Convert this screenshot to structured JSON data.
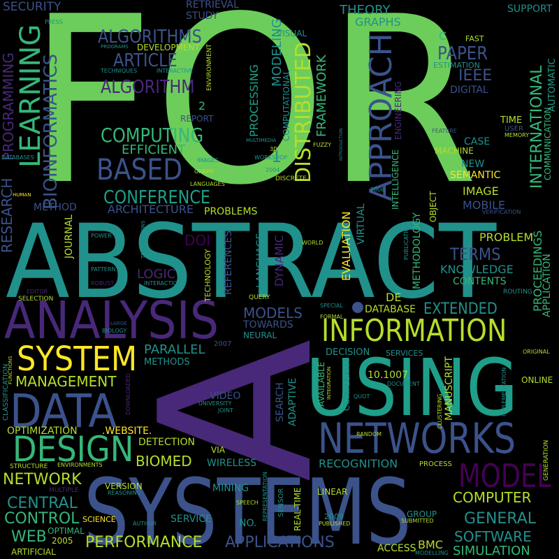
{
  "palette": {
    "background": "#000000",
    "green": "#6ccd5a",
    "teal": "#21918c",
    "blue": "#3b528b",
    "purple": "#482878",
    "dark_purple": "#440154",
    "yellow": "#fde725",
    "light_green": "#b5de2b",
    "sea": "#35b779",
    "mint": "#1f9e89"
  },
  "words": {
    "for": "FOR",
    "abstract": "ABSTRACT",
    "a": "A",
    "using": "USING",
    "systems": "SYSTEMS",
    "analysis": "ANALYSIS",
    "information": "INFORMATION",
    "data": "DATA",
    "networks": "NETWORKS",
    "design": "DESIGN",
    "system": "SYSTEM",
    "model": "MODEL",
    "approach": "APPROACH",
    "based": "BASED",
    "learning": "LEARNING",
    "distributed": "DISTRIBUTED",
    "computing": "COMPUTING",
    "conference": "CONFERENCE",
    "algorithms": "ALGORITHMS",
    "article": "ARTICLE",
    "algorithm": "ALGORITHM",
    "bioinformatics": "BIOINFORMATICS",
    "research": "RESEARCH",
    "programming": "PROGRAMMING",
    "security": "SECURITY",
    "retrieval": "RETRIEVAL",
    "study": "STUDY",
    "theory": "THEORY",
    "graphs": "GRAPHS",
    "support": "SUPPORT",
    "paper": "PAPER",
    "ieee": "IEEE",
    "digital": "DIGITAL",
    "international": "INTERNATIONAL",
    "communication": "COMMUNICATION",
    "automatic": "AUTOMATIC",
    "framework": "FRAMEWORK",
    "modeling": "MODELING",
    "processing": "PROCESSING",
    "computational": "COMPUTATIONAL",
    "efficient": "EFFICIENT",
    "architecture": "ARCHITECTURE",
    "method": "METHOD",
    "problems": "PROBLEMS",
    "image": "IMAGE",
    "mobile": "MOBILE",
    "new": "NEW",
    "semantic": "SEMANTIC",
    "case": "CASE",
    "machine": "MACHINE",
    "time": "TIME",
    "user": "USER",
    "memory": "MEMORY",
    "feature": "FEATURE",
    "intelligence": "INTELLIGENCE",
    "engineering": "ENGINEERING",
    "development": "DEVELOPMENT",
    "environment": "ENVIRONMENT",
    "interactive": "INTERACTIVE",
    "techniques": "TECHNIQUES",
    "programs": "PROGRAMS",
    "press": "PRESS",
    "visual": "VISUAL",
    "fast": "FAST",
    "estimation": "ESTIMATION",
    "c": "C",
    "report": "REPORT",
    "two": "2",
    "one": "1",
    "three_d": "3D",
    "workshop": "WORKSHOP",
    "multimedia": "MULTIMEDIA",
    "fuzzy": "FUZZY",
    "introduction": "INTRODUCTION",
    "discrete": "DISCRETE",
    "y2004": "2004",
    "y2006": "2006",
    "graph": "GRAPH",
    "languages": "LANGUAGES",
    "images": "IMAGES",
    "databases": "DATABASES",
    "human": "HUMAN",
    "problem": "PROBLEM",
    "terms": "TERMS",
    "knowledge": "KNOWLEDGE",
    "contents": "CONTENTS",
    "routing": "ROUTING",
    "proceedings": "PROCEEDINGS",
    "application": "APPLICATION",
    "verification": "VERIFICATION",
    "object": "OBJECT",
    "publication": "PUBLICATION",
    "methodology": "METHODOLOGY",
    "evaluation": "EVALUATION",
    "virtual": "VIRTUAL",
    "extended": "EXTENDED",
    "database": "DATABASE",
    "de": "DE",
    "journal": "JOURNAL",
    "power": "POWER",
    "doi": "DOI",
    "references": "REFERENCES",
    "language": "LANGUAGE",
    "dynamic": "DYNAMIC",
    "world": "WORLD",
    "logic": "LOGIC",
    "technology": "TECHNOLOGY",
    "computation": "COMPUTATION",
    "transactions": "TRANSACTIONS",
    "pattern": "PATTERN",
    "robust": "ROBUST",
    "interaction": "INTERACTION",
    "editor": "EDITOR",
    "selection": "SELECTION",
    "query": "QUERY",
    "models": "MODELS",
    "towards": "TOWARDS",
    "neural": "NEURAL",
    "special": "SPECIAL",
    "formal": "FORMAL",
    "biology": "BIOLOGY",
    "large": "LARGE",
    "parallel": "PARALLEL",
    "methods": "METHODS",
    "y2007": "2007",
    "management": "MANAGEMENT",
    "classification": "CLASSIFICATION",
    "functions": "FUNCTIONS",
    "decision": "DECISION",
    "services": "SERVICES",
    "original": "ORIGINAL",
    "doi_number": "10.1007",
    "document": "DOCUMENT",
    "online": "ONLINE",
    "manuscript": "MANUSCRIPT",
    "complexity": "COMPLEXITY",
    "available": "AVAILABLE",
    "integration": "INTEGRATION",
    "quot": "QUOT",
    "clustering": "CLUSTERING",
    "implementation": "IMPLEMENTATION",
    "video": "VIDEO",
    "university": "UNIVERSITY",
    "joint": "JOINT",
    "scheduling": "SCHEDULING",
    "search": "SEARCH",
    "adaptive": "ADAPTIVE",
    "downloaded": "DOWNLOADED",
    "optimization": "OPTIMIZATION",
    "website": ".WEBSITE.",
    "detection": "DETECTION",
    "via": "VIA",
    "random": "RANDOM",
    "biomed": "BIOMED",
    "wireless": "WIRELESS",
    "recognition": "RECOGNITION",
    "process": "PROCESS",
    "generation": "GENERATION",
    "structure": "STRUCTURE",
    "environments": "ENVIRONMENTS",
    "network": "NETWORK",
    "multiple": "MULTIPLE",
    "version": "VERSION",
    "reasoning": "REASONING",
    "mining": "MINING",
    "representation": "REPRESENTATION",
    "sensor": "SENSOR",
    "real_time": "REAL-TIME",
    "linear": "LINEAR",
    "computer": "COMPUTER",
    "central": "CENTRAL",
    "speech": "SPEECH",
    "control": "CONTROL",
    "science": "SCIENCE",
    "author": "AUTHOR",
    "service": "SERVICE",
    "no": "NO.",
    "y2009": "2009",
    "published": "PUBLISHED",
    "group": "GROUP",
    "submitted": "SUBMITTED",
    "general": "GENERAL",
    "web": "WEB",
    "optimal": "OPTIMAL",
    "y2005": "2005",
    "performance": "PERFORMANCE",
    "applications": "APPLICATIONS",
    "access": "ACCESS",
    "bmc": "BMC",
    "modelling": "MODELLING",
    "software": "SOFTWARE",
    "simulation": "SIMULATION",
    "artificial": "ARTIFICIAL"
  }
}
